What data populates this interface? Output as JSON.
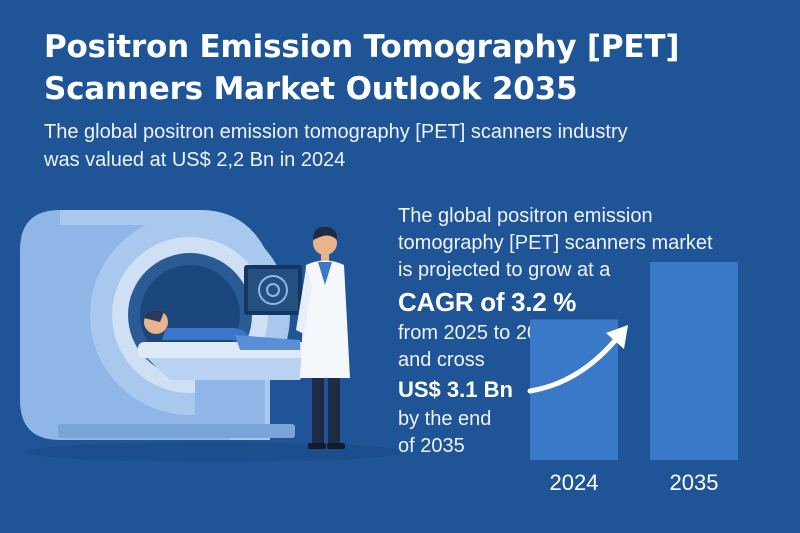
{
  "title": {
    "line1": "Positron Emission Tomography [PET]",
    "line2": "Scanners Market Outlook 2035"
  },
  "intro": {
    "line1": "The global positron emission tomography [PET] scanners industry",
    "line2": "was valued at US$ 2,2 Bn in 2024"
  },
  "projection": {
    "line1": "The global positron emission",
    "line2": "tomography [PET] scanners market",
    "line3": "is projected to grow at a",
    "cagr": "CAGR of 3.2 %",
    "line4": "from 2025 to 2035",
    "line5": "and cross",
    "value": "US$ 3.1 Bn",
    "line6": "by the end",
    "line7": "of 2035"
  },
  "chart_data": {
    "type": "bar",
    "categories": [
      "2024",
      "2035"
    ],
    "values": [
      2.2,
      3.1
    ],
    "title": "",
    "xlabel": "",
    "ylabel": "",
    "ylim": [
      0,
      3.6
    ],
    "grid": false,
    "bar_color": "#3a78c8"
  },
  "colors": {
    "background": "#1f5596",
    "scanner": "#8fb6e6",
    "bar": "#3a78c8"
  },
  "icons": {
    "scanner": "pet-scanner-icon",
    "doctor": "doctor-icon",
    "monitor": "monitor-icon",
    "arrow": "growth-arrow-icon"
  }
}
